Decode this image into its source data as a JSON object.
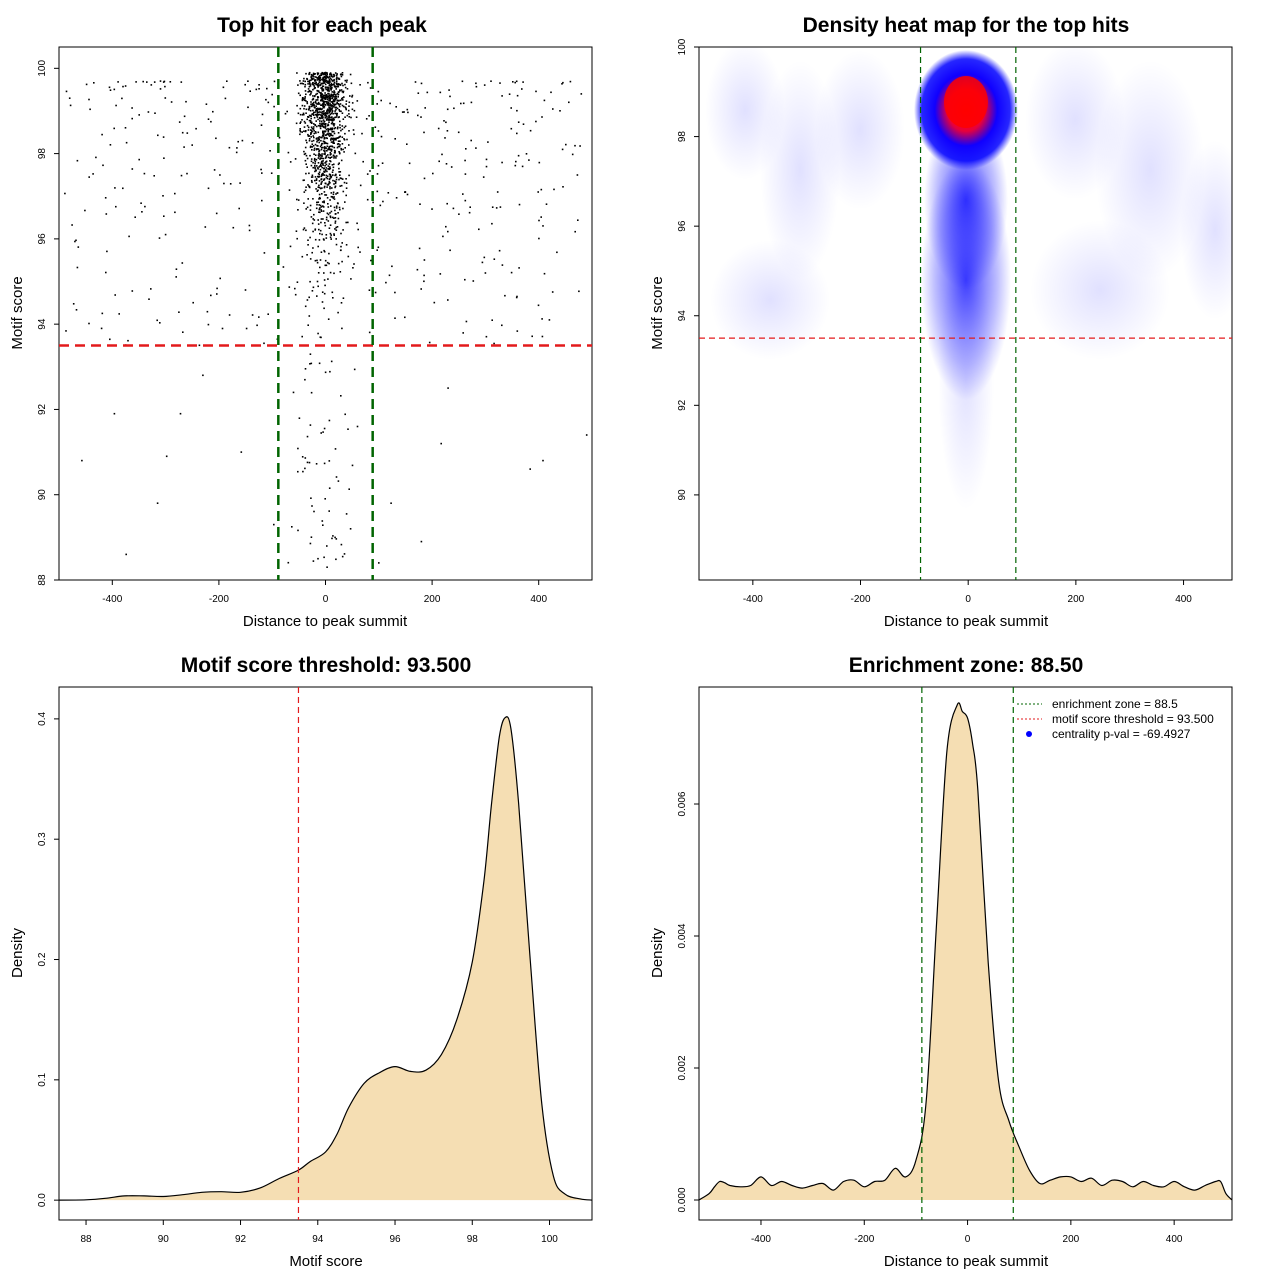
{
  "chart_data": [
    {
      "type": "scatter",
      "title": "Top hit for each peak",
      "xlabel": "Distance to peak summit",
      "ylabel": "Motif score",
      "xlim": [
        -500,
        500
      ],
      "ylim": [
        88,
        100.5
      ],
      "x_ticks": [
        -400,
        -200,
        0,
        200,
        400
      ],
      "x_tick_labels": [
        "-400",
        "-200",
        "0",
        "200",
        "400"
      ],
      "y_ticks": [
        88,
        90,
        92,
        94,
        96,
        98,
        100
      ],
      "y_tick_labels": [
        "88",
        "90",
        "92",
        "94",
        "96",
        "98",
        "100"
      ],
      "vlines": [
        -88.5,
        88.5
      ],
      "vline_color": "#006400",
      "hline": 93.5,
      "hline_color": "#e31a1c",
      "point_color": "#000000",
      "grid": false,
      "points_sample": [
        [
          -457,
          90.8
        ],
        [
          -396,
          91.9
        ],
        [
          -374,
          88.6
        ],
        [
          -315,
          89.8
        ],
        [
          -298,
          90.9
        ],
        [
          -272,
          91.9
        ],
        [
          -158,
          91.0
        ],
        [
          -97,
          89.3
        ],
        [
          -14,
          88.5
        ],
        [
          3,
          88.3
        ],
        [
          18,
          89.0
        ],
        [
          47,
          89.2
        ],
        [
          100,
          88.4
        ],
        [
          123,
          89.8
        ],
        [
          180,
          88.9
        ],
        [
          217,
          91.2
        ],
        [
          384,
          90.6
        ],
        [
          408,
          90.8
        ],
        [
          490,
          91.4
        ],
        [
          0,
          99.9
        ],
        [
          10,
          98.8
        ],
        [
          -5,
          97.5
        ],
        [
          20,
          96.0
        ],
        [
          -15,
          95.0
        ],
        [
          30,
          94.5
        ],
        [
          -480,
          99.3
        ],
        [
          -250,
          98.2
        ],
        [
          250,
          98.5
        ],
        [
          480,
          99.4
        ],
        [
          -300,
          96.1
        ],
        [
          300,
          95.2
        ],
        [
          -150,
          94.8
        ],
        [
          150,
          97.1
        ],
        [
          -420,
          93.9
        ],
        [
          420,
          94.1
        ],
        [
          -60,
          92.4
        ],
        [
          60,
          91.6
        ],
        [
          -230,
          92.8
        ],
        [
          230,
          92.5
        ]
      ]
    },
    {
      "type": "heatmap",
      "title": "Density heat map for the top hits",
      "xlabel": "Distance to peak summit",
      "ylabel": "Motif score",
      "xlim": [
        -500,
        490
      ],
      "ylim": [
        88.1,
        100
      ],
      "x_ticks": [
        -400,
        -200,
        0,
        200,
        400
      ],
      "x_tick_labels": [
        "-400",
        "-200",
        "0",
        "200",
        "400"
      ],
      "y_ticks": [
        90,
        92,
        94,
        96,
        98,
        100
      ],
      "y_tick_labels": [
        "90",
        "92",
        "94",
        "96",
        "98",
        "100"
      ],
      "vlines": [
        -88.5,
        88.5
      ],
      "vline_color": "#006400",
      "hline": 93.5,
      "hline_color": "#e31a1c",
      "color_scale": [
        "#ffffff",
        "#0000ff",
        "#ff0000"
      ],
      "peak": {
        "x": 0,
        "y": 98.8
      }
    },
    {
      "type": "area",
      "title": "Motif score threshold: 93.500",
      "xlabel": "Motif score",
      "ylabel": "Density",
      "xlim": [
        87.3,
        101.1
      ],
      "ylim": [
        -0.0165,
        0.4265
      ],
      "x_ticks": [
        88,
        90,
        92,
        94,
        96,
        98,
        100
      ],
      "x_tick_labels": [
        "88",
        "90",
        "92",
        "94",
        "96",
        "98",
        "100"
      ],
      "y_ticks": [
        0.0,
        0.1,
        0.2,
        0.3,
        0.4
      ],
      "y_tick_labels": [
        "0.0",
        "0.1",
        "0.2",
        "0.3",
        "0.4"
      ],
      "fill_color": "#f5deb3",
      "vline": 93.5,
      "vline_color": "#e31a1c",
      "x": [
        87.3,
        88.0,
        88.5,
        89.0,
        89.5,
        90.0,
        90.5,
        91.0,
        91.5,
        92.0,
        92.5,
        93.0,
        93.5,
        93.8,
        94.2,
        94.5,
        94.8,
        95.2,
        95.6,
        96.0,
        96.4,
        96.8,
        97.2,
        97.6,
        98.0,
        98.3,
        98.5,
        98.7,
        98.85,
        99.0,
        99.2,
        99.5,
        99.8,
        100.1,
        100.4,
        100.8,
        101.1
      ],
      "y": [
        0.0,
        0.0003,
        0.0015,
        0.0035,
        0.0035,
        0.003,
        0.0045,
        0.0065,
        0.007,
        0.0065,
        0.01,
        0.018,
        0.025,
        0.032,
        0.04,
        0.055,
        0.077,
        0.097,
        0.106,
        0.111,
        0.107,
        0.108,
        0.121,
        0.15,
        0.198,
        0.265,
        0.33,
        0.385,
        0.401,
        0.392,
        0.33,
        0.2,
        0.08,
        0.02,
        0.005,
        0.001,
        0.0
      ]
    },
    {
      "type": "area",
      "title": "Enrichment zone: 88.50",
      "xlabel": "Distance to peak summit",
      "ylabel": "Density",
      "xlim": [
        -520,
        512
      ],
      "ylim": [
        -0.000303,
        0.007773
      ],
      "x_ticks": [
        -400,
        -200,
        0,
        200,
        400
      ],
      "x_tick_labels": [
        "-400",
        "-200",
        "0",
        "200",
        "400"
      ],
      "y_ticks": [
        0.0,
        0.002,
        0.004,
        0.006
      ],
      "y_tick_labels": [
        "0.000",
        "0.002",
        "0.004",
        "0.006"
      ],
      "fill_color": "#f5deb3",
      "vlines": [
        -88.5,
        88.5
      ],
      "vline_color": "#006400",
      "legend": {
        "position": "top-right",
        "items": [
          {
            "label": "enrichment zone = 88.5",
            "color": "#006400",
            "style": "dotted-line"
          },
          {
            "label": "motif score threshold = 93.500",
            "color": "#e31a1c",
            "style": "dotted-line"
          },
          {
            "label": "centrality p-val = -69.4927",
            "color": "#0000ff",
            "style": "point"
          }
        ]
      },
      "x": [
        -520,
        -500,
        -490,
        -480,
        -470,
        -460,
        -440,
        -420,
        -400,
        -380,
        -360,
        -340,
        -320,
        -300,
        -280,
        -260,
        -240,
        -220,
        -200,
        -180,
        -160,
        -140,
        -120,
        -100,
        -80,
        -60,
        -40,
        -20,
        -10,
        0,
        10,
        20,
        40,
        60,
        80,
        100,
        120,
        140,
        160,
        180,
        200,
        220,
        240,
        260,
        280,
        300,
        320,
        340,
        360,
        380,
        400,
        420,
        440,
        460,
        480,
        490,
        500,
        512
      ],
      "y": [
        0.0,
        0.0001,
        0.0002,
        0.00028,
        0.00026,
        0.00022,
        0.0002,
        0.00022,
        0.00035,
        0.00022,
        0.00028,
        0.00022,
        0.00018,
        0.00022,
        0.00025,
        0.00015,
        0.00028,
        0.0003,
        0.0002,
        0.00028,
        0.0003,
        0.00048,
        0.00035,
        0.0006,
        0.0015,
        0.0042,
        0.0068,
        0.0075,
        0.0074,
        0.0073,
        0.0069,
        0.0062,
        0.0036,
        0.0018,
        0.0012,
        0.0008,
        0.00045,
        0.00025,
        0.0003,
        0.00035,
        0.00035,
        0.00028,
        0.00033,
        0.00022,
        0.0003,
        0.00028,
        0.0002,
        0.00028,
        0.00022,
        0.0002,
        0.00028,
        0.0002,
        0.00015,
        0.00022,
        0.00028,
        0.00028,
        0.0001,
        0.0
      ]
    }
  ]
}
